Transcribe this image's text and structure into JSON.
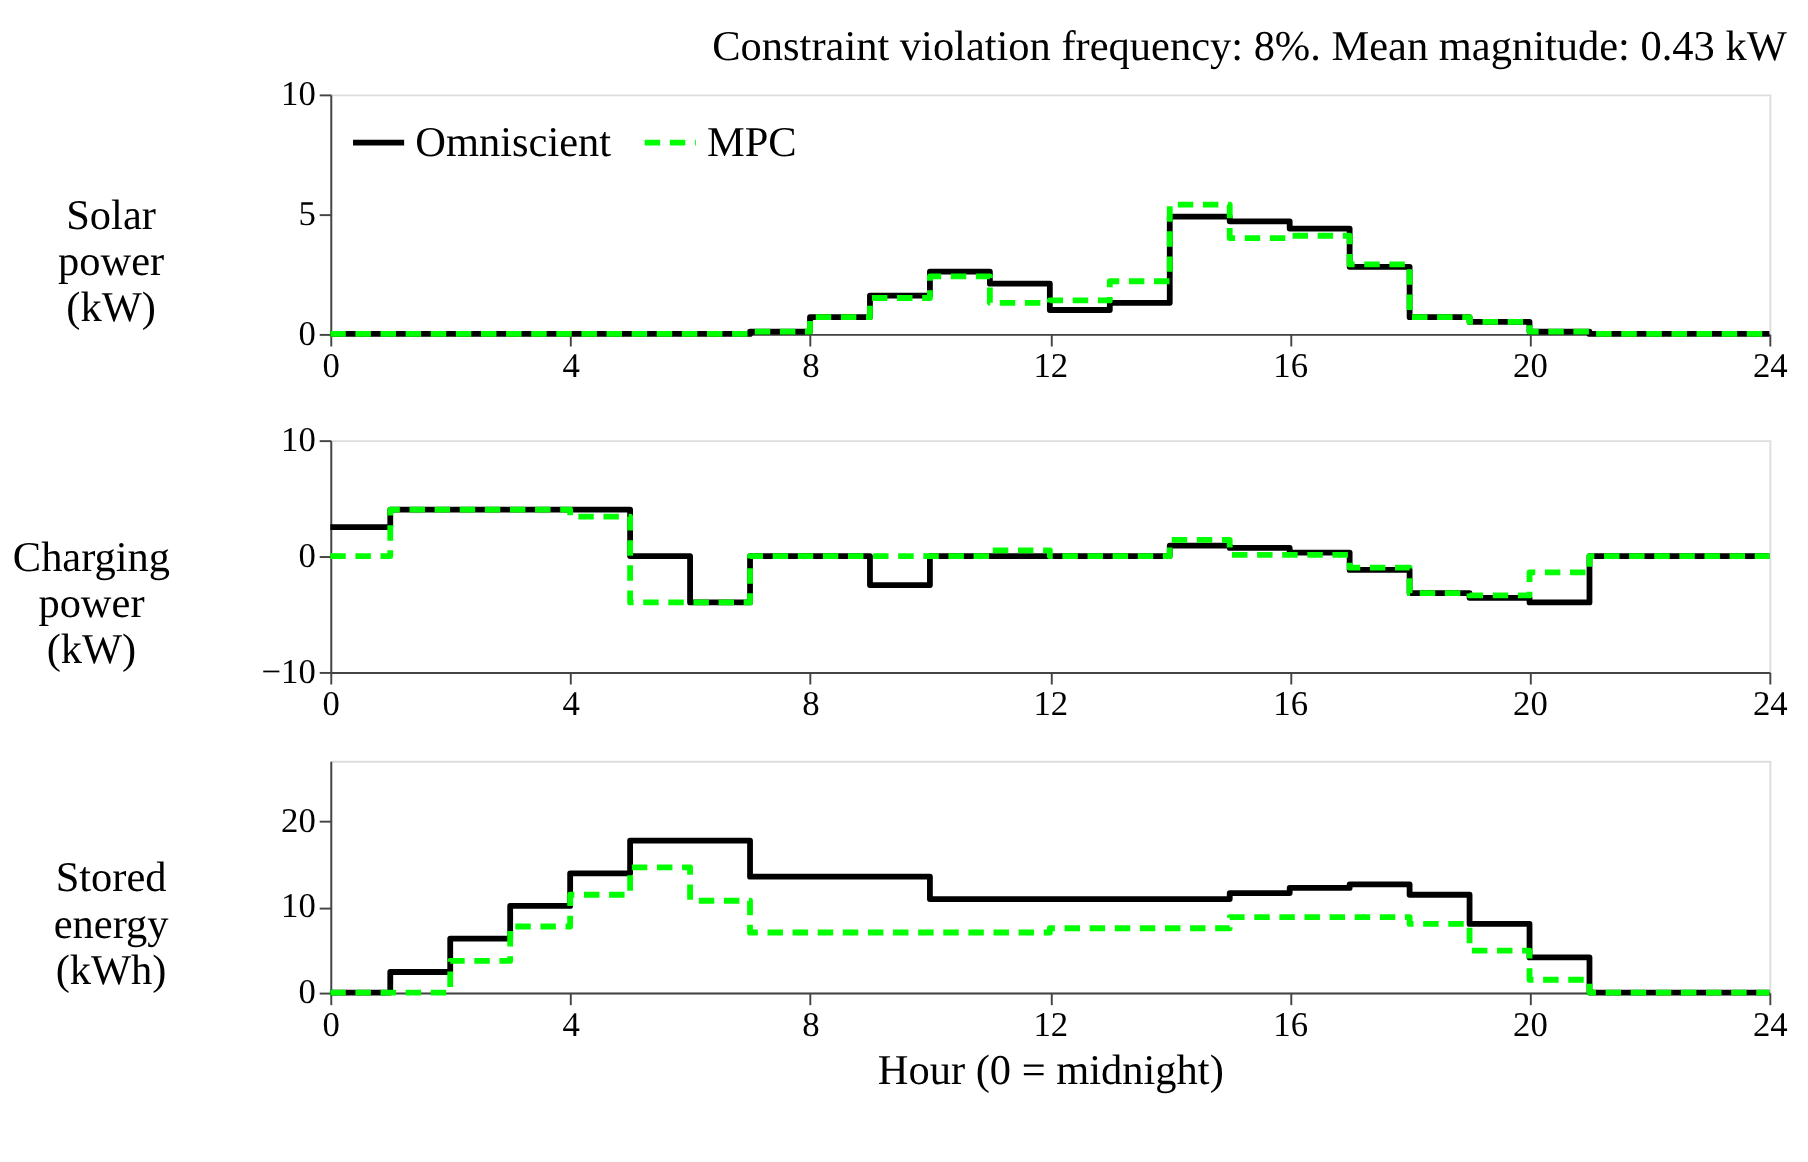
{
  "chart_data": [
    {
      "type": "step",
      "title": "Constraint violation frequency: 8%. Mean magnitude: 0.43 kW",
      "ylabel": "Solar power (kW)",
      "x": [
        0,
        1,
        2,
        3,
        4,
        5,
        6,
        7,
        8,
        9,
        10,
        11,
        12,
        13,
        14,
        15,
        16,
        17,
        18,
        19,
        20,
        21,
        22,
        23,
        24
      ],
      "xlim": [
        0,
        24
      ],
      "xticks": [
        0,
        4,
        8,
        12,
        16,
        20,
        24
      ],
      "ylim": [
        0,
        10
      ],
      "yticks": [
        0,
        5,
        10
      ],
      "legend": "top left",
      "grid": false,
      "series": [
        {
          "name": "Omniscient",
          "color": "#000000",
          "line_style": "solid",
          "values": [
            0,
            0,
            0,
            0,
            0,
            0,
            0,
            0.1,
            0.7,
            1.6,
            2.6,
            2.1,
            1.0,
            1.3,
            4.9,
            4.7,
            4.4,
            2.8,
            0.7,
            0.5,
            0.1,
            0,
            0,
            0,
            0
          ]
        },
        {
          "name": "MPC",
          "color": "#00ff00",
          "line_style": "dashed",
          "values": [
            0,
            0,
            0,
            0,
            0,
            0,
            0,
            0.1,
            0.7,
            1.5,
            2.4,
            1.3,
            1.4,
            2.2,
            5.4,
            4.0,
            4.1,
            2.9,
            0.7,
            0.5,
            0.1,
            0,
            0,
            0,
            0
          ]
        }
      ]
    },
    {
      "type": "step",
      "ylabel": "Charging power (kW)",
      "x": [
        0,
        1,
        2,
        3,
        4,
        5,
        6,
        7,
        8,
        9,
        10,
        11,
        12,
        13,
        14,
        15,
        16,
        17,
        18,
        19,
        20,
        21,
        22,
        23,
        24
      ],
      "xlim": [
        0,
        24
      ],
      "xticks": [
        0,
        4,
        8,
        12,
        16,
        20,
        24
      ],
      "ylim": [
        -10,
        10
      ],
      "yticks": [
        -10,
        0,
        10
      ],
      "legend": false,
      "grid": false,
      "series": [
        {
          "name": "Omniscient",
          "color": "#000000",
          "line_style": "solid",
          "values": [
            2.5,
            4.0,
            4.0,
            4.0,
            4.0,
            0,
            -4.0,
            0,
            0,
            -2.5,
            0,
            0,
            0,
            0,
            0.9,
            0.7,
            0.3,
            -1.2,
            -3.2,
            -3.6,
            -4.0,
            0,
            0,
            0,
            0
          ]
        },
        {
          "name": "MPC",
          "color": "#00ff00",
          "line_style": "dashed",
          "values": [
            0,
            4.0,
            4.0,
            4.0,
            3.4,
            -4.0,
            -4.0,
            0,
            0,
            0,
            0,
            0.5,
            0,
            0,
            1.4,
            0.1,
            0.1,
            -1.0,
            -3.2,
            -3.4,
            -1.4,
            0,
            0,
            0,
            0
          ]
        }
      ]
    },
    {
      "type": "step",
      "ylabel": "Stored energy (kWh)",
      "xlabel": "Hour (0 = midnight)",
      "x": [
        0,
        1,
        2,
        3,
        4,
        5,
        6,
        7,
        8,
        9,
        10,
        11,
        12,
        13,
        14,
        15,
        16,
        17,
        18,
        19,
        20,
        21,
        22,
        23,
        24
      ],
      "xlim": [
        0,
        24
      ],
      "xticks": [
        0,
        4,
        8,
        12,
        16,
        20,
        24
      ],
      "ylim": [
        0,
        27
      ],
      "yticks": [
        0,
        10,
        20
      ],
      "legend": false,
      "grid": false,
      "series": [
        {
          "name": "Omniscient",
          "color": "#000000",
          "line_style": "solid",
          "values": [
            0,
            2.4,
            6.3,
            10.1,
            13.9,
            17.7,
            17.7,
            13.5,
            13.5,
            13.5,
            10.9,
            10.9,
            10.9,
            10.9,
            10.9,
            11.6,
            12.2,
            12.6,
            11.4,
            8.0,
            4.1,
            0,
            0,
            0,
            0
          ]
        },
        {
          "name": "MPC",
          "color": "#00ff00",
          "line_style": "dashed",
          "values": [
            0,
            0,
            3.7,
            7.7,
            11.4,
            14.6,
            10.7,
            7.0,
            7.0,
            7.0,
            7.0,
            7.0,
            7.5,
            7.5,
            7.5,
            8.8,
            8.8,
            8.8,
            8.0,
            4.9,
            1.5,
            0,
            0,
            0,
            0
          ]
        }
      ]
    }
  ]
}
